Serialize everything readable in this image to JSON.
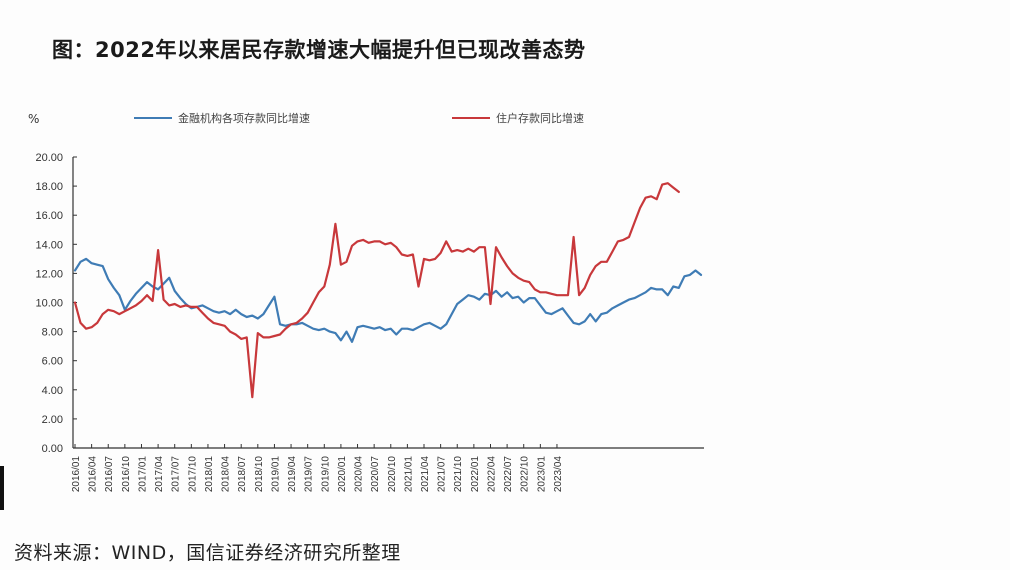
{
  "title": "图：2022年以来居民存款增速大幅提升但已现改善态势",
  "source": "资料来源：WIND，国信证券经济研究所整理",
  "chart_data": {
    "type": "line",
    "title": "图：2022年以来居民存款增速大幅提升但已现改善态势",
    "xlabel": "",
    "ylabel": "%",
    "ylim": [
      0,
      20
    ],
    "yticks": [
      "0.00",
      "2.00",
      "4.00",
      "6.00",
      "8.00",
      "10.00",
      "12.00",
      "14.00",
      "16.00",
      "18.00",
      "20.00"
    ],
    "grid": false,
    "legend_position": "top",
    "x_tick_labels": [
      "2016/01",
      "2016/04",
      "2016/07",
      "2016/10",
      "2017/01",
      "2017/04",
      "2017/07",
      "2017/10",
      "2018/01",
      "2018/04",
      "2018/07",
      "2018/10",
      "2019/01",
      "2019/04",
      "2019/07",
      "2019/10",
      "2020/01",
      "2020/04",
      "2020/07",
      "2020/10",
      "2021/01",
      "2021/04",
      "2021/07",
      "2021/10",
      "2022/01",
      "2022/04",
      "2022/07",
      "2022/10",
      "2023/01",
      "2023/04"
    ],
    "x_start": "2016/01",
    "x_end": "2023/04",
    "frequency": "monthly",
    "series": [
      {
        "name": "金融机构各项存款同比增速",
        "color": "#3f7cb5",
        "values": [
          12.2,
          12.8,
          13.0,
          12.7,
          12.6,
          12.5,
          11.6,
          11.0,
          10.5,
          9.5,
          10.1,
          10.6,
          11.0,
          11.4,
          11.1,
          10.9,
          11.3,
          11.7,
          10.8,
          10.3,
          9.9,
          9.6,
          9.7,
          9.8,
          9.6,
          9.4,
          9.3,
          9.4,
          9.2,
          9.5,
          9.2,
          9.0,
          9.1,
          8.9,
          9.2,
          9.8,
          10.4,
          8.5,
          8.4,
          8.5,
          8.5,
          8.6,
          8.4,
          8.2,
          8.1,
          8.2,
          8.0,
          7.9,
          7.4,
          8.0,
          7.3,
          8.3,
          8.4,
          8.3,
          8.2,
          8.3,
          8.1,
          8.2,
          7.8,
          8.2,
          8.2,
          8.1,
          8.3,
          8.5,
          8.6,
          8.4,
          8.2,
          8.5,
          9.2,
          9.9,
          10.2,
          10.5,
          10.4,
          10.2,
          10.6,
          10.5,
          10.8,
          10.4,
          10.7,
          10.3,
          10.4,
          10.0,
          10.3,
          10.3,
          9.8,
          9.3,
          9.2,
          9.4,
          9.6,
          9.1,
          8.6,
          8.5,
          8.7,
          9.2,
          8.7,
          9.2,
          9.3,
          9.6,
          9.8,
          10.0,
          10.2,
          10.3,
          10.5,
          10.7,
          11.0,
          10.9,
          10.9,
          10.5,
          11.1,
          11.0,
          11.8,
          11.9,
          12.2,
          11.9
        ]
      },
      {
        "name": "住户存款同比增速",
        "color": "#c8383b",
        "values": [
          10.0,
          8.6,
          8.2,
          8.3,
          8.6,
          9.2,
          9.5,
          9.4,
          9.2,
          9.4,
          9.6,
          9.8,
          10.1,
          10.5,
          10.1,
          13.6,
          10.2,
          9.8,
          9.9,
          9.7,
          9.8,
          9.7,
          9.7,
          9.3,
          8.9,
          8.6,
          8.5,
          8.4,
          8.0,
          7.8,
          7.5,
          7.6,
          3.5,
          7.9,
          7.6,
          7.6,
          7.7,
          7.8,
          8.2,
          8.5,
          8.6,
          8.9,
          9.3,
          10.0,
          10.7,
          11.1,
          12.6,
          15.4,
          12.6,
          12.8,
          13.9,
          14.2,
          14.3,
          14.1,
          14.2,
          14.2,
          14.0,
          14.1,
          13.8,
          13.3,
          13.2,
          13.3,
          11.1,
          13.0,
          12.9,
          13.0,
          13.4,
          14.2,
          13.5,
          13.6,
          13.5,
          13.7,
          13.5,
          13.8,
          13.8,
          9.9,
          13.8,
          13.1,
          12.5,
          12.0,
          11.7,
          11.5,
          11.4,
          10.9,
          10.7,
          10.7,
          10.6,
          10.5,
          10.5,
          10.5,
          14.5,
          10.5,
          11.0,
          11.9,
          12.5,
          12.8,
          12.8,
          13.5,
          14.2,
          14.3,
          14.5,
          15.5,
          16.5,
          17.2,
          17.3,
          17.1,
          18.1,
          18.2,
          17.9,
          17.6
        ]
      }
    ]
  },
  "legend": [
    {
      "label": "金融机构各项存款同比增速",
      "color": "#3f7cb5"
    },
    {
      "label": "住户存款同比增速",
      "color": "#c8383b"
    }
  ],
  "unit_label": "%"
}
